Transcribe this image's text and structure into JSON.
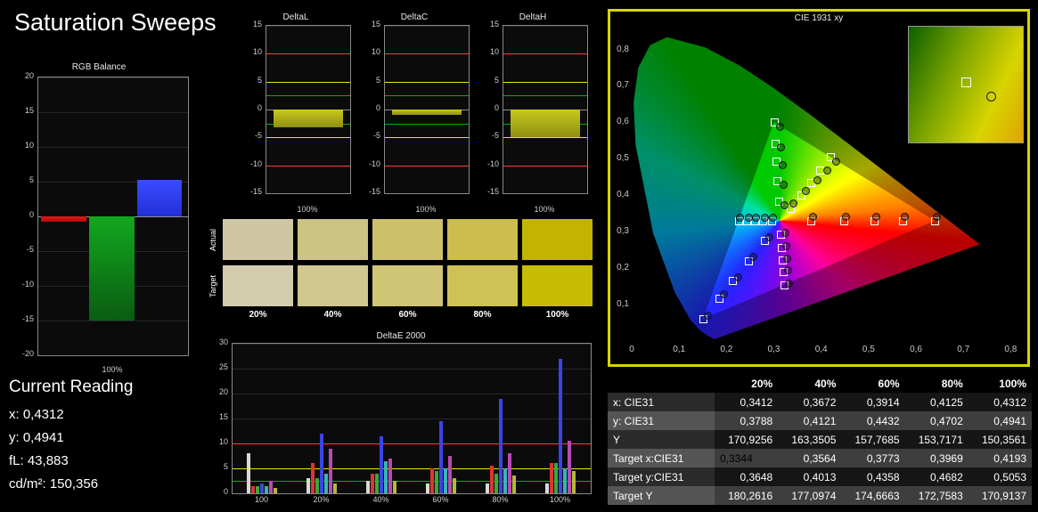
{
  "title": "Saturation Sweeps",
  "current_reading": {
    "heading": "Current Reading",
    "lines": [
      "x: 0,4312",
      "y: 0,4941",
      "fL: 43,883",
      "cd/m²: 150,356"
    ]
  },
  "swatches": {
    "row_labels": [
      "Actual",
      "Target"
    ],
    "column_labels": [
      "20%",
      "40%",
      "60%",
      "80%",
      "100%"
    ],
    "actual": [
      "#cfc7a3",
      "#cdc384",
      "#ccc06a",
      "#cbbd4e",
      "#c3b303"
    ],
    "target": [
      "#d3ccae",
      "#d1c88f",
      "#cfc575",
      "#cec255",
      "#c8bb06"
    ]
  },
  "charts": {
    "rgb_balance": {
      "type": "bar",
      "title": "RGB Balance",
      "xlabel": "100%",
      "ylim": [
        -20,
        20
      ],
      "yticks": [
        20,
        15,
        10,
        5,
        0,
        -5,
        -10,
        -15,
        -20
      ],
      "bars": [
        {
          "name": "red",
          "value": -0.8,
          "color": "linear-gradient(180deg,#e81616,#a80f0f)"
        },
        {
          "name": "green",
          "value": -15,
          "color": "linear-gradient(180deg,#12a81e,#0a5c12)"
        },
        {
          "name": "blue",
          "value": 5.2,
          "color": "linear-gradient(180deg,#3a4cff,#2230d8)"
        }
      ]
    },
    "delta_l": {
      "type": "bar",
      "title": "DeltaL",
      "xlabel": "100%",
      "ylim": [
        -15,
        15
      ],
      "yticks": [
        15,
        10,
        5,
        0,
        -5,
        -10,
        -15
      ],
      "value": -3.2,
      "bar_color": "linear-gradient(180deg,#c9c91e,#8f8f12)",
      "ref_lines": [
        {
          "value": 10,
          "color": "#ff3a3a"
        },
        {
          "value": 5,
          "color": "#e8e800"
        },
        {
          "value": 2.5,
          "color": "#00b400"
        },
        {
          "value": -2.5,
          "color": "#00b400"
        },
        {
          "value": -5,
          "color": "#e8e800"
        },
        {
          "value": -10,
          "color": "#ff3a3a"
        }
      ]
    },
    "delta_c": {
      "type": "bar",
      "title": "DeltaC",
      "xlabel": "100%",
      "ylim": [
        -15,
        15
      ],
      "yticks": [
        15,
        10,
        5,
        0,
        -5,
        -10,
        -15
      ],
      "value": -1.0,
      "bar_color": "linear-gradient(180deg,#c9c91e,#8f8f12)",
      "ref_lines": [
        {
          "value": 10,
          "color": "#ff3a3a"
        },
        {
          "value": 5,
          "color": "#e8e800"
        },
        {
          "value": 2.5,
          "color": "#00b400"
        },
        {
          "value": -2.5,
          "color": "#00b400"
        },
        {
          "value": -5,
          "color": "#e8e800"
        },
        {
          "value": -10,
          "color": "#ff3a3a"
        }
      ]
    },
    "delta_h": {
      "type": "bar",
      "title": "DeltaH",
      "xlabel": "100%",
      "ylim": [
        -15,
        15
      ],
      "yticks": [
        15,
        10,
        5,
        0,
        -5,
        -10,
        -15
      ],
      "value": -5.0,
      "bar_color": "linear-gradient(180deg,#c9c91e,#8f8f12)",
      "ref_lines": [
        {
          "value": 10,
          "color": "#ff3a3a"
        },
        {
          "value": 5,
          "color": "#e8e800"
        },
        {
          "value": 2.5,
          "color": "#00b400"
        },
        {
          "value": -2.5,
          "color": "#00b400"
        },
        {
          "value": -5,
          "color": "#e8e800"
        },
        {
          "value": -10,
          "color": "#ff3a3a"
        }
      ]
    },
    "delta_e": {
      "type": "bar",
      "title": "DeltaE 2000",
      "ylim": [
        0,
        30
      ],
      "yticks": [
        30,
        25,
        20,
        15,
        10,
        5,
        0
      ],
      "categories": [
        "100",
        "20%",
        "40%",
        "60%",
        "80%",
        "100%"
      ],
      "series": [
        {
          "name": "white",
          "color": "#d9d9d9",
          "values": [
            8,
            3,
            2.5,
            2,
            2,
            2
          ]
        },
        {
          "name": "red",
          "color": "#e03434",
          "values": [
            1.5,
            6,
            4,
            5,
            5.5,
            6
          ]
        },
        {
          "name": "green",
          "color": "#3aa83a",
          "values": [
            1.5,
            3,
            4,
            4.5,
            4,
            6
          ]
        },
        {
          "name": "blue",
          "color": "#3c44e8",
          "values": [
            2,
            12,
            11.5,
            14.5,
            19,
            27
          ]
        },
        {
          "name": "cyan",
          "color": "#3ab4b4",
          "values": [
            1.5,
            4,
            6.5,
            5,
            5,
            5
          ]
        },
        {
          "name": "magenta",
          "color": "#b84ab8",
          "values": [
            2.5,
            9,
            7,
            7.5,
            8,
            10.5
          ]
        },
        {
          "name": "yellow",
          "color": "#b8b832",
          "values": [
            1,
            2,
            2.5,
            3,
            3.5,
            4.5
          ]
        }
      ],
      "ref_lines": [
        {
          "value": 10,
          "color": "#ff3a3a"
        },
        {
          "value": 5,
          "color": "#e8e800"
        },
        {
          "value": 2.5,
          "color": "#00b400"
        }
      ]
    },
    "cie": {
      "type": "scatter",
      "title": "CIE 1931 xy",
      "xlim": [
        0,
        0.82
      ],
      "ylim": [
        0,
        0.86
      ],
      "xtick_labels": [
        "0",
        "0,1",
        "0,2",
        "0,3",
        "0,4",
        "0,5",
        "0,6",
        "0,7",
        "0,8"
      ],
      "ytick_labels": [
        "0,1",
        "0,2",
        "0,3",
        "0,4",
        "0,5",
        "0,6",
        "0,7",
        "0,8"
      ],
      "gamut_triangle": [
        [
          0.64,
          0.33
        ],
        [
          0.3,
          0.6
        ],
        [
          0.15,
          0.06
        ]
      ],
      "sweeps": [
        {
          "name": "yellow",
          "target": [
            [
              0.3344,
              0.3648
            ],
            [
              0.3564,
              0.4013
            ],
            [
              0.3773,
              0.4358
            ],
            [
              0.3969,
              0.4682
            ],
            [
              0.4193,
              0.5053
            ]
          ],
          "measured": [
            [
              0.3412,
              0.3788
            ],
            [
              0.3672,
              0.4121
            ],
            [
              0.3914,
              0.4432
            ],
            [
              0.4125,
              0.4702
            ],
            [
              0.4312,
              0.4941
            ]
          ]
        },
        {
          "name": "red",
          "target": [
            [
              0.378,
              0.329
            ],
            [
              0.447,
              0.329
            ],
            [
              0.512,
              0.33
            ],
            [
              0.571,
              0.33
            ],
            [
              0.64,
              0.33
            ]
          ],
          "measured": [
            [
              0.382,
              0.341
            ],
            [
              0.451,
              0.341
            ],
            [
              0.516,
              0.342
            ],
            [
              0.575,
              0.342
            ],
            [
              0.644,
              0.342
            ]
          ]
        },
        {
          "name": "green",
          "target": [
            [
              0.31,
              0.383
            ],
            [
              0.307,
              0.44
            ],
            [
              0.305,
              0.494
            ],
            [
              0.302,
              0.543
            ],
            [
              0.3,
              0.6
            ]
          ],
          "measured": [
            [
              0.322,
              0.373
            ],
            [
              0.319,
              0.43
            ],
            [
              0.317,
              0.484
            ],
            [
              0.314,
              0.533
            ],
            [
              0.312,
              0.59
            ]
          ]
        },
        {
          "name": "blue",
          "target": [
            [
              0.28,
              0.275
            ],
            [
              0.246,
              0.219
            ],
            [
              0.213,
              0.165
            ],
            [
              0.184,
              0.117
            ],
            [
              0.15,
              0.06
            ]
          ],
          "measured": [
            [
              0.29,
              0.287
            ],
            [
              0.256,
              0.231
            ],
            [
              0.223,
              0.177
            ],
            [
              0.194,
              0.129
            ],
            [
              0.16,
              0.072
            ]
          ]
        },
        {
          "name": "cyan",
          "target": [
            [
              0.295,
              0.329
            ],
            [
              0.277,
              0.329
            ],
            [
              0.259,
              0.329
            ],
            [
              0.243,
              0.329
            ],
            [
              0.225,
              0.329
            ]
          ],
          "measured": [
            [
              0.298,
              0.339
            ],
            [
              0.28,
              0.339
            ],
            [
              0.262,
              0.339
            ],
            [
              0.246,
              0.339
            ],
            [
              0.228,
              0.339
            ]
          ]
        },
        {
          "name": "magenta",
          "target": [
            [
              0.314,
              0.294
            ],
            [
              0.316,
              0.257
            ],
            [
              0.318,
              0.222
            ],
            [
              0.319,
              0.191
            ],
            [
              0.321,
              0.154
            ]
          ],
          "measured": [
            [
              0.324,
              0.299
            ],
            [
              0.326,
              0.262
            ],
            [
              0.328,
              0.227
            ],
            [
              0.329,
              0.196
            ],
            [
              0.331,
              0.159
            ]
          ]
        }
      ]
    }
  },
  "table": {
    "columns": [
      "20%",
      "40%",
      "60%",
      "80%",
      "100%"
    ],
    "rows": [
      {
        "label": "x: CIE31",
        "values": [
          "0,3412",
          "0,3672",
          "0,3914",
          "0,4125",
          "0,4312"
        ]
      },
      {
        "label": "y: CIE31",
        "values": [
          "0,3788",
          "0,4121",
          "0,4432",
          "0,4702",
          "0,4941"
        ]
      },
      {
        "label": "Y",
        "values": [
          "170,9256",
          "163,3505",
          "157,7685",
          "153,7171",
          "150,3561"
        ]
      },
      {
        "label": "Target x:CIE31",
        "values": [
          "0,3344",
          "0,3564",
          "0,3773",
          "0,3969",
          "0,4193"
        ]
      },
      {
        "label": "Target y:CIE31",
        "values": [
          "0,3648",
          "0,4013",
          "0,4358",
          "0,4682",
          "0,5053"
        ]
      },
      {
        "label": "Target Y",
        "values": [
          "180,2616",
          "177,0974",
          "174,6663",
          "172,7583",
          "170,9137"
        ]
      }
    ],
    "selected_cell": {
      "row": 3,
      "col": 0
    }
  }
}
